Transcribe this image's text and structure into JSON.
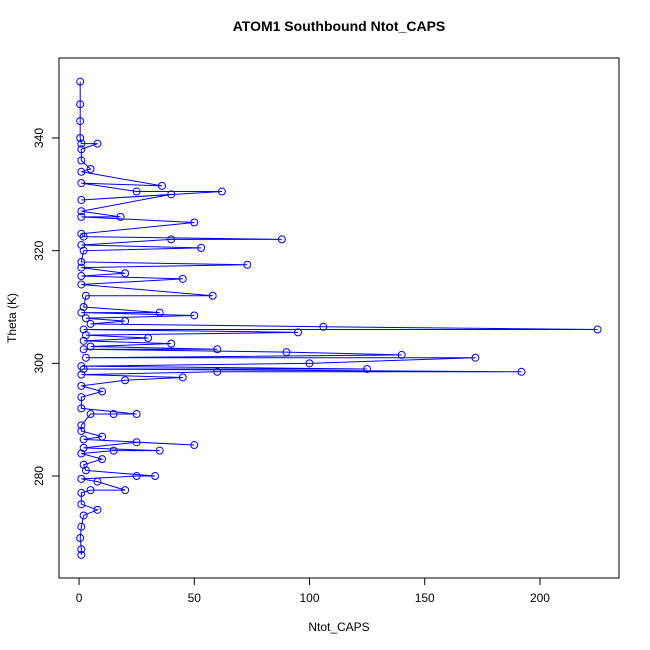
{
  "chart_data": {
    "type": "line",
    "title": "ATOM1 Southbound Ntot_CAPS",
    "xlabel": "Ntot_CAPS",
    "ylabel": "Theta (K)",
    "xlim": [
      -8.7,
      234.3
    ],
    "ylim": [
      261.9,
      354.2
    ],
    "xticks": [
      0,
      50,
      100,
      150,
      200
    ],
    "yticks": [
      280,
      300,
      320,
      340
    ],
    "x": [
      1,
      1,
      0.5,
      1,
      2,
      8,
      1,
      1,
      5,
      20,
      8,
      1,
      25,
      33,
      3,
      2,
      10,
      1,
      15,
      35,
      2,
      25,
      50,
      2,
      10,
      1,
      1,
      5,
      15,
      25,
      1,
      1,
      10,
      1,
      20,
      45,
      1,
      60,
      192,
      2,
      125,
      1,
      100,
      172,
      3,
      140,
      90,
      2,
      60,
      5,
      40,
      2,
      30,
      3,
      95,
      2,
      225,
      106,
      5,
      20,
      3,
      50,
      1,
      35,
      2,
      3,
      58,
      1,
      45,
      1,
      20,
      1,
      73,
      1,
      2,
      53,
      1,
      40,
      88,
      2,
      1,
      50,
      1,
      18,
      1,
      40,
      1,
      62,
      25,
      1,
      36,
      1,
      5,
      1,
      1,
      8,
      1,
      0.5,
      0.5,
      0.5,
      0.5
    ],
    "series": [
      {
        "color": "#0000ff",
        "values": [
          266,
          267,
          269,
          271,
          273,
          274,
          275,
          277,
          277.5,
          277.5,
          279,
          279.5,
          280,
          280,
          281,
          282,
          283,
          284,
          284.5,
          284.5,
          285,
          286,
          285.5,
          286.5,
          287,
          288,
          289,
          291,
          291,
          291,
          292,
          294,
          295,
          296,
          297,
          297.5,
          298,
          298.5,
          298.5,
          299,
          299,
          299.5,
          300,
          301,
          301,
          301.5,
          302,
          302.5,
          302.5,
          303,
          303.5,
          304,
          304.5,
          305,
          305.5,
          306,
          306,
          306.5,
          307,
          307.5,
          308,
          308.5,
          309,
          309,
          310,
          312,
          312,
          314,
          315,
          315.5,
          316,
          317,
          317.5,
          318,
          320,
          320.5,
          321,
          322,
          322,
          322.5,
          323,
          325,
          326,
          326,
          327,
          330,
          329,
          330.5,
          330.5,
          332,
          331.5,
          334,
          334.5,
          336,
          338,
          339,
          339,
          340,
          343,
          346,
          350
        ]
      }
    ]
  }
}
